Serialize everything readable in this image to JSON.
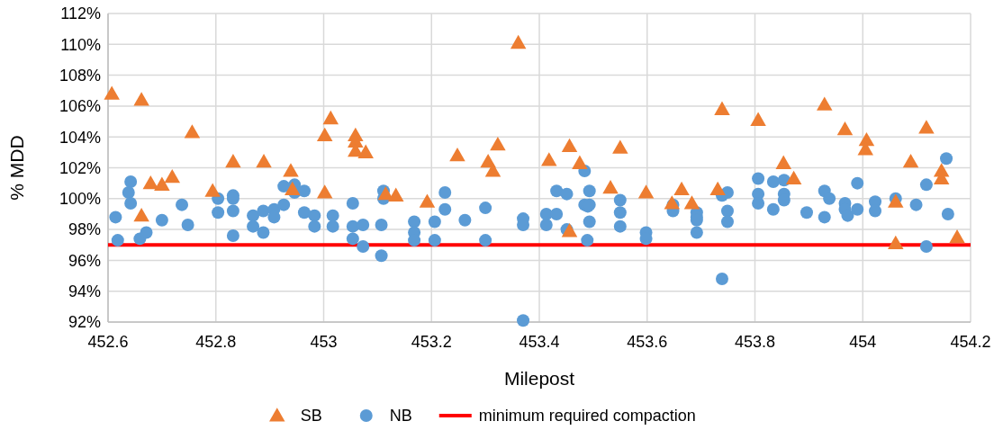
{
  "chart_data": {
    "type": "scatter",
    "xlabel": "Milepost",
    "ylabel": "% MDD",
    "xlim": [
      452.6,
      454.2
    ],
    "xticks": [
      452.6,
      452.8,
      453,
      453.2,
      453.4,
      453.6,
      453.8,
      454,
      454.2
    ],
    "ylim": [
      92,
      112
    ],
    "yticks": [
      {
        "value": 92,
        "label": "92%"
      },
      {
        "value": 94,
        "label": "94%"
      },
      {
        "value": 96,
        "label": "96%"
      },
      {
        "value": 98,
        "label": "98%"
      },
      {
        "value": 100,
        "label": "100%"
      },
      {
        "value": 102,
        "label": "102%"
      },
      {
        "value": 104,
        "label": "104%"
      },
      {
        "value": 106,
        "label": "106%"
      },
      {
        "value": 108,
        "label": "108%"
      },
      {
        "value": 110,
        "label": "110%"
      },
      {
        "value": 112,
        "label": "112%"
      }
    ],
    "grid": true,
    "legend": "bottom",
    "series": [
      {
        "name": "SB",
        "color": "#ed7d31",
        "marker": "triangle",
        "x": [
          452.607,
          452.662,
          452.662,
          452.679,
          452.7,
          452.719,
          452.756,
          452.794,
          452.832,
          452.889,
          452.939,
          452.942,
          453.002,
          453.002,
          453.013,
          453.059,
          453.059,
          453.059,
          453.078,
          453.115,
          453.134,
          453.192,
          453.248,
          453.305,
          453.314,
          453.323,
          453.361,
          453.418,
          453.456,
          453.456,
          453.475,
          453.532,
          453.55,
          453.598,
          453.646,
          453.664,
          453.683,
          453.731,
          453.739,
          453.806,
          453.853,
          453.872,
          453.929,
          453.967,
          454.007,
          454.005,
          454.061,
          454.061,
          454.089,
          454.118,
          454.146,
          454.146,
          454.175
        ],
        "values": [
          106.8,
          106.4,
          98.9,
          101.0,
          100.9,
          101.4,
          104.3,
          100.5,
          102.4,
          102.4,
          101.8,
          100.6,
          100.4,
          104.1,
          105.2,
          104.1,
          103.7,
          103.1,
          103.0,
          100.3,
          100.2,
          99.8,
          102.8,
          102.4,
          101.8,
          103.5,
          110.1,
          102.5,
          103.4,
          97.9,
          102.3,
          100.7,
          103.3,
          100.4,
          99.7,
          100.6,
          99.7,
          100.6,
          105.8,
          105.1,
          102.3,
          101.3,
          106.1,
          104.5,
          103.8,
          103.2,
          99.8,
          97.1,
          102.4,
          104.6,
          101.8,
          101.3,
          97.5
        ]
      },
      {
        "name": "NB",
        "color": "#5b9bd5",
        "marker": "circle",
        "x": [
          452.614,
          452.618,
          452.642,
          452.638,
          452.642,
          452.659,
          452.671,
          452.7,
          452.737,
          452.748,
          452.804,
          452.804,
          452.832,
          452.832,
          452.832,
          452.832,
          452.869,
          452.869,
          452.888,
          452.888,
          452.908,
          452.908,
          452.926,
          452.926,
          452.946,
          452.946,
          452.964,
          452.964,
          452.983,
          452.983,
          453.017,
          453.017,
          453.054,
          453.054,
          453.054,
          453.073,
          453.073,
          453.107,
          453.107,
          453.111,
          453.111,
          453.168,
          453.168,
          453.168,
          453.206,
          453.206,
          453.225,
          453.225,
          453.262,
          453.3,
          453.3,
          453.37,
          453.37,
          453.37,
          453.413,
          453.413,
          453.432,
          453.432,
          453.451,
          453.451,
          453.484,
          453.484,
          453.49,
          453.489,
          453.493,
          453.493,
          453.493,
          453.55,
          453.55,
          453.55,
          453.598,
          453.598,
          453.648,
          453.648,
          453.692,
          453.692,
          453.692,
          453.692,
          453.739,
          453.749,
          453.749,
          453.749,
          453.739,
          453.806,
          453.806,
          453.806,
          453.834,
          453.834,
          453.854,
          453.854,
          453.854,
          453.896,
          453.929,
          453.929,
          453.938,
          453.967,
          453.967,
          453.972,
          453.99,
          453.99,
          454.023,
          454.023,
          454.061,
          454.099,
          454.118,
          454.118,
          454.155,
          454.158
        ],
        "values": [
          98.8,
          97.3,
          101.1,
          100.4,
          99.7,
          97.4,
          97.8,
          98.6,
          99.6,
          98.3,
          100.0,
          99.1,
          100.2,
          100.0,
          99.2,
          97.6,
          98.9,
          98.2,
          99.2,
          97.8,
          99.3,
          98.8,
          99.6,
          100.8,
          100.9,
          100.4,
          100.5,
          99.1,
          98.9,
          98.2,
          98.9,
          98.2,
          99.7,
          98.2,
          97.4,
          98.3,
          96.9,
          96.3,
          98.3,
          100.5,
          100.0,
          98.5,
          97.8,
          97.3,
          98.5,
          97.3,
          100.4,
          99.3,
          98.6,
          99.4,
          97.3,
          98.7,
          98.3,
          92.1,
          99.0,
          98.3,
          100.5,
          99.0,
          100.3,
          98.0,
          101.8,
          99.6,
          99.5,
          97.3,
          100.5,
          99.6,
          98.5,
          99.9,
          99.1,
          98.2,
          97.8,
          97.4,
          99.6,
          99.2,
          99.1,
          98.8,
          98.6,
          97.8,
          100.2,
          100.4,
          99.2,
          98.5,
          94.8,
          101.3,
          100.3,
          99.7,
          101.1,
          99.3,
          101.2,
          100.3,
          99.9,
          99.1,
          100.5,
          98.8,
          100.0,
          99.7,
          99.3,
          98.9,
          101.0,
          99.3,
          99.8,
          99.2,
          100.0,
          99.6,
          100.9,
          96.9,
          102.6,
          99.0
        ]
      }
    ],
    "ref_lines": [
      {
        "axis": "y",
        "value": 97,
        "label": "minimum required compaction",
        "color": "#ff0000",
        "line_style": "solid"
      }
    ]
  }
}
